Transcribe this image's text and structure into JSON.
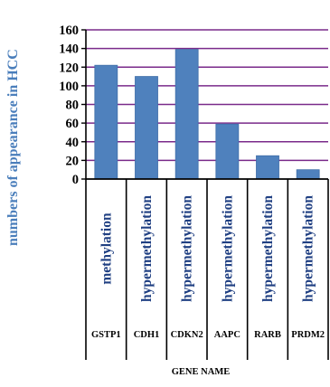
{
  "chart_data": {
    "type": "bar",
    "categories": [
      "GSTP1",
      "CDH1",
      "CDKN2",
      "AAPC",
      "RARB",
      "PRDM2"
    ],
    "methylation_status": [
      "methylation",
      "hypermethylation",
      "hypermethylation",
      "hypermethylation",
      "hypermethylation",
      "hypermethylation"
    ],
    "values": [
      122,
      110,
      139,
      59,
      25,
      10
    ],
    "xlabel": "GENE NAME",
    "ylabel": "numbers of appearance in HCC",
    "ylim": [
      0,
      160
    ],
    "yticks": [
      "0",
      "20",
      "40",
      "60",
      "80",
      "100",
      "120",
      "140",
      "160"
    ],
    "grid": true,
    "colors": {
      "bar": "#4f81bd",
      "bar_edge": "#3f6ea8",
      "grid": "#7a2a8a",
      "axis": "#000000",
      "ylabel": "#4a7ebb",
      "status_text": "#1f3f82"
    }
  }
}
